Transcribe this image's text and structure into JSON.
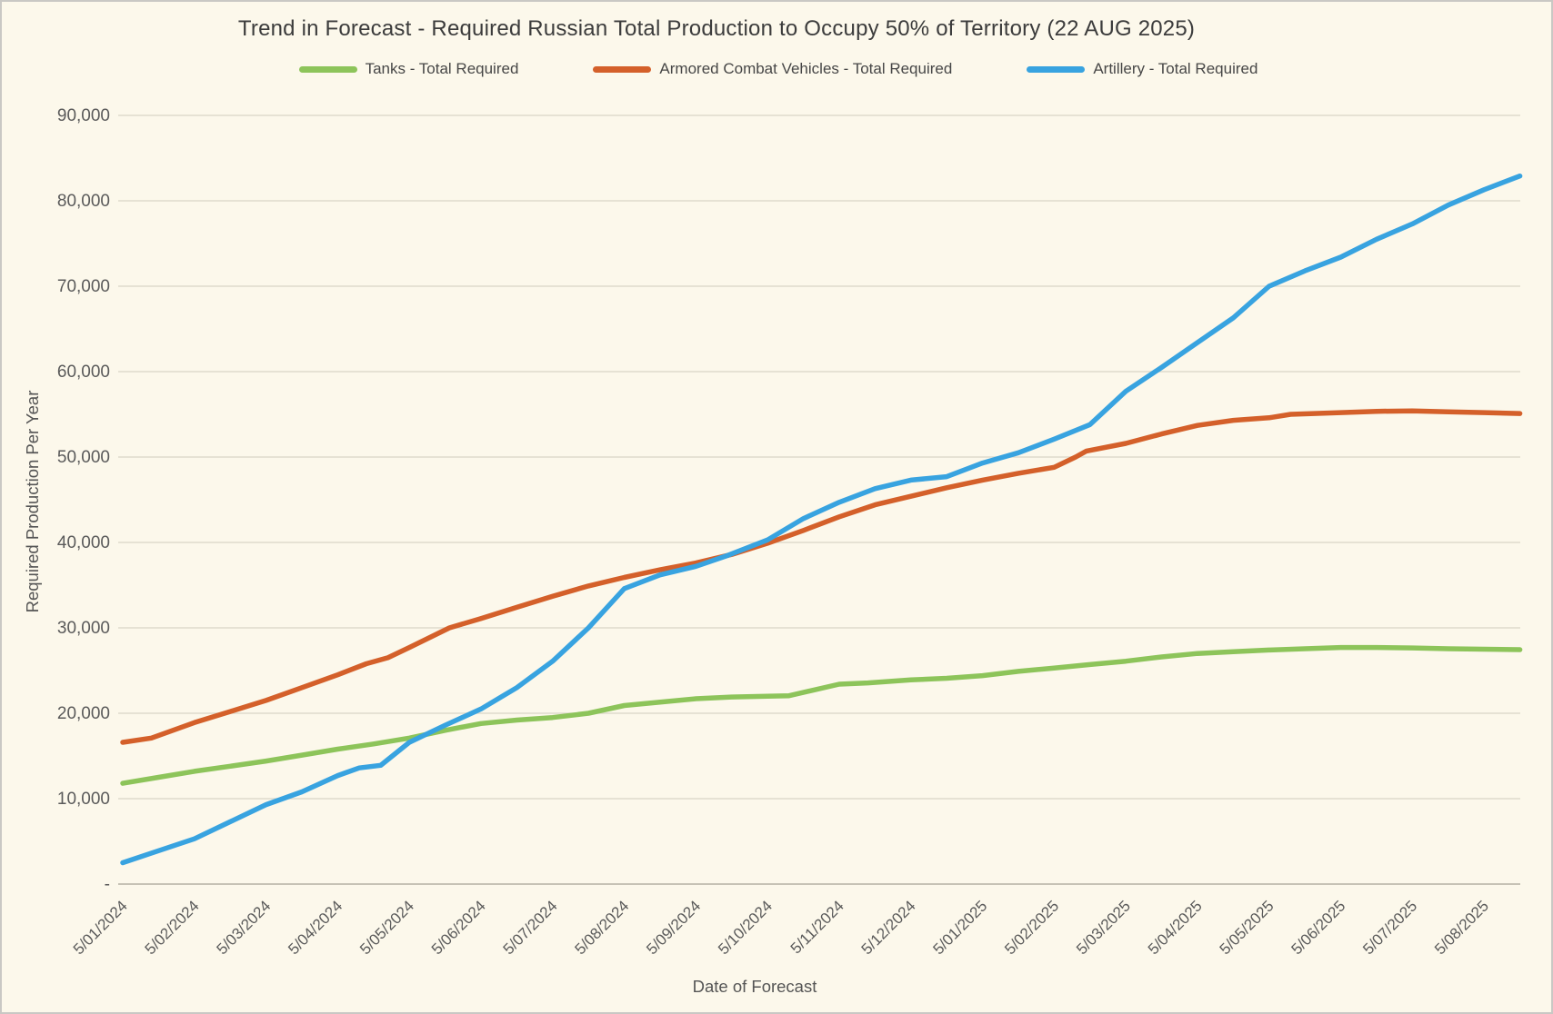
{
  "chart_data": {
    "type": "line",
    "title": "Trend in Forecast - Required Russian Total Production to Occupy 50% of Territory (22 AUG 2025)",
    "xlabel": "Date of Forecast",
    "ylabel": "Required Production Per Year",
    "ylim": [
      0,
      90000
    ],
    "ytick_step": 10000,
    "yticks": [
      "-",
      "10,000",
      "20,000",
      "30,000",
      "40,000",
      "50,000",
      "60,000",
      "70,000",
      "80,000",
      "90,000"
    ],
    "xticklabels": [
      "5/01/2024",
      "5/02/2024",
      "5/03/2024",
      "5/04/2024",
      "5/05/2024",
      "5/06/2024",
      "5/07/2024",
      "5/08/2024",
      "5/09/2024",
      "5/10/2024",
      "5/11/2024",
      "5/12/2024",
      "5/01/2025",
      "5/02/2025",
      "5/03/2025",
      "5/04/2025",
      "5/05/2025",
      "5/06/2025",
      "5/07/2025",
      "5/08/2025"
    ],
    "x_encoding": "x = months after first tick 5/01/2024; ticks monthly; series extend ~0.5 month past last tick (forecast date 22 AUG 2025)",
    "grid": "horizontal only",
    "legend_position": "top center",
    "series": [
      {
        "id": "tanks",
        "name": "Tanks - Total Required",
        "color": "#8dc45a",
        "points": [
          [
            0,
            11800
          ],
          [
            0.5,
            12500
          ],
          [
            1,
            13200
          ],
          [
            1.5,
            13800
          ],
          [
            2,
            14400
          ],
          [
            2.5,
            15100
          ],
          [
            3,
            15800
          ],
          [
            3.5,
            16400
          ],
          [
            4,
            17100
          ],
          [
            4.5,
            18000
          ],
          [
            5,
            18800
          ],
          [
            5.5,
            19200
          ],
          [
            6,
            19500
          ],
          [
            6.5,
            20000
          ],
          [
            7,
            20900
          ],
          [
            7.5,
            21300
          ],
          [
            8,
            21700
          ],
          [
            8.5,
            21900
          ],
          [
            9,
            22000
          ],
          [
            9.3,
            22050
          ],
          [
            10,
            23400
          ],
          [
            10.4,
            23550
          ],
          [
            11,
            23900
          ],
          [
            11.5,
            24100
          ],
          [
            12,
            24400
          ],
          [
            12.5,
            24900
          ],
          [
            13,
            25300
          ],
          [
            13.5,
            25700
          ],
          [
            14,
            26100
          ],
          [
            14.5,
            26600
          ],
          [
            15,
            27000
          ],
          [
            15.5,
            27200
          ],
          [
            16,
            27400
          ],
          [
            16.5,
            27550
          ],
          [
            17,
            27700
          ],
          [
            17.5,
            27700
          ],
          [
            18,
            27650
          ],
          [
            18.5,
            27550
          ],
          [
            19,
            27500
          ],
          [
            19.5,
            27450
          ]
        ]
      },
      {
        "id": "acv",
        "name": "Armored Combat Vehicles - Total Required",
        "color": "#d4602a",
        "points": [
          [
            0,
            16600
          ],
          [
            0.4,
            17100
          ],
          [
            1,
            18900
          ],
          [
            1.5,
            20200
          ],
          [
            2,
            21500
          ],
          [
            2.5,
            23000
          ],
          [
            3,
            24500
          ],
          [
            3.4,
            25800
          ],
          [
            3.7,
            26500
          ],
          [
            4,
            27700
          ],
          [
            4.56,
            30000
          ],
          [
            5,
            31100
          ],
          [
            5.5,
            32400
          ],
          [
            6,
            33700
          ],
          [
            6.5,
            34900
          ],
          [
            7,
            35900
          ],
          [
            7.5,
            36800
          ],
          [
            8,
            37600
          ],
          [
            8.5,
            38600
          ],
          [
            9,
            39900
          ],
          [
            9.5,
            41400
          ],
          [
            10,
            43000
          ],
          [
            10.5,
            44400
          ],
          [
            11,
            45400
          ],
          [
            11.5,
            46400
          ],
          [
            12,
            47300
          ],
          [
            12.5,
            48100
          ],
          [
            13,
            48800
          ],
          [
            13.3,
            50000
          ],
          [
            13.45,
            50700
          ],
          [
            14,
            51600
          ],
          [
            14.5,
            52700
          ],
          [
            15,
            53700
          ],
          [
            15.5,
            54300
          ],
          [
            16,
            54600
          ],
          [
            16.3,
            55000
          ],
          [
            17,
            55200
          ],
          [
            17.5,
            55350
          ],
          [
            18,
            55400
          ],
          [
            18.5,
            55300
          ],
          [
            19,
            55200
          ],
          [
            19.5,
            55100
          ]
        ]
      },
      {
        "id": "artillery",
        "name": "Artillery - Total Required",
        "color": "#38a3e0",
        "points": [
          [
            0,
            2500
          ],
          [
            0.5,
            3900
          ],
          [
            1,
            5300
          ],
          [
            1.5,
            7300
          ],
          [
            2,
            9300
          ],
          [
            2.5,
            10800
          ],
          [
            3,
            12700
          ],
          [
            3.3,
            13600
          ],
          [
            3.6,
            13900
          ],
          [
            4,
            16600
          ],
          [
            4.5,
            18600
          ],
          [
            5,
            20500
          ],
          [
            5.5,
            23000
          ],
          [
            6,
            26100
          ],
          [
            6.5,
            30000
          ],
          [
            7,
            34600
          ],
          [
            7.5,
            36200
          ],
          [
            8,
            37200
          ],
          [
            8.45,
            38500
          ],
          [
            9,
            40300
          ],
          [
            9.5,
            42800
          ],
          [
            10,
            44700
          ],
          [
            10.5,
            46300
          ],
          [
            11,
            47300
          ],
          [
            11.5,
            47700
          ],
          [
            12,
            49300
          ],
          [
            12.5,
            50500
          ],
          [
            13,
            52100
          ],
          [
            13.5,
            53800
          ],
          [
            14,
            57700
          ],
          [
            14.5,
            60500
          ],
          [
            15,
            63400
          ],
          [
            15.5,
            66300
          ],
          [
            16,
            70000
          ],
          [
            16.5,
            71800
          ],
          [
            17,
            73400
          ],
          [
            17.5,
            75500
          ],
          [
            18,
            77300
          ],
          [
            18.5,
            79500
          ],
          [
            19,
            81300
          ],
          [
            19.5,
            82900
          ]
        ]
      }
    ]
  }
}
